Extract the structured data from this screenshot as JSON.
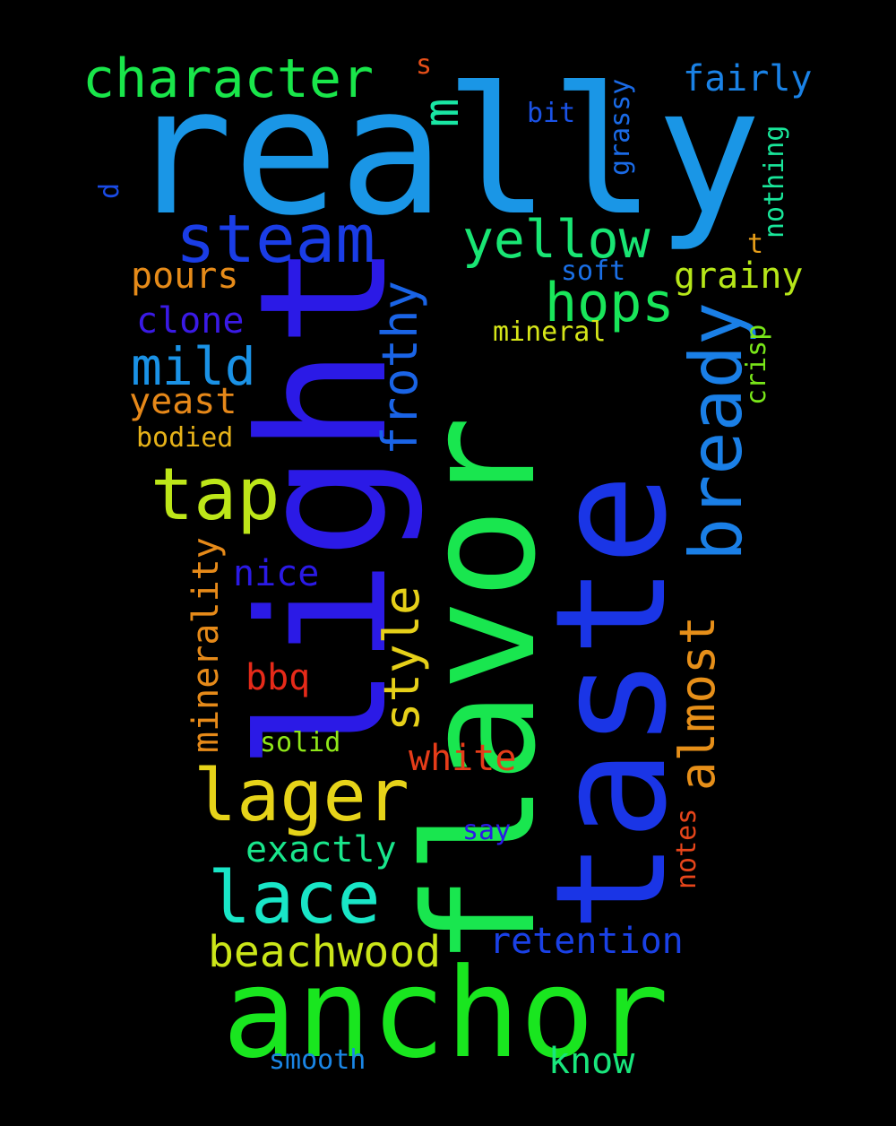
{
  "words": [
    {
      "id": "really",
      "text": "really",
      "color": "#1a96e6",
      "orientation": "horizontal"
    },
    {
      "id": "flavor",
      "text": "flavor",
      "color": "#19e64f",
      "orientation": "vertical"
    },
    {
      "id": "taste",
      "text": "taste",
      "color": "#1a35e6",
      "orientation": "vertical"
    },
    {
      "id": "light",
      "text": "light",
      "color": "#2b1ae6",
      "orientation": "vertical"
    },
    {
      "id": "anchor",
      "text": "anchor",
      "color": "#19e61f",
      "orientation": "horizontal"
    },
    {
      "id": "character",
      "text": "character",
      "color": "#19e64a",
      "orientation": "horizontal"
    },
    {
      "id": "steam",
      "text": "steam",
      "color": "#1a3de6",
      "orientation": "horizontal"
    },
    {
      "id": "yellow",
      "text": "yellow",
      "color": "#19e674",
      "orientation": "horizontal"
    },
    {
      "id": "hops",
      "text": "hops",
      "color": "#19e65a",
      "orientation": "horizontal"
    },
    {
      "id": "bready",
      "text": "bready",
      "color": "#1a7fe6",
      "orientation": "vertical"
    },
    {
      "id": "tap",
      "text": "tap",
      "color": "#bde619",
      "orientation": "horizontal"
    },
    {
      "id": "lager",
      "text": "lager",
      "color": "#e6d319",
      "orientation": "horizontal"
    },
    {
      "id": "lace",
      "text": "lace",
      "color": "#19e6c7",
      "orientation": "horizontal"
    },
    {
      "id": "mild",
      "text": "mild",
      "color": "#1a92e6",
      "orientation": "horizontal"
    },
    {
      "id": "pours",
      "text": "pours",
      "color": "#e68b19",
      "orientation": "horizontal"
    },
    {
      "id": "clone",
      "text": "clone",
      "color": "#3a1ae6",
      "orientation": "horizontal"
    },
    {
      "id": "yeast",
      "text": "yeast",
      "color": "#e68819",
      "orientation": "horizontal"
    },
    {
      "id": "bodied",
      "text": "bodied",
      "color": "#e6b219",
      "orientation": "horizontal"
    },
    {
      "id": "frothy",
      "text": "frothy",
      "color": "#1a64e6",
      "orientation": "vertical"
    },
    {
      "id": "fairly",
      "text": "fairly",
      "color": "#1a82e6",
      "orientation": "horizontal"
    },
    {
      "id": "m",
      "text": "m",
      "color": "#19e6a3",
      "orientation": "vertical"
    },
    {
      "id": "s",
      "text": "s",
      "color": "#e64f19",
      "orientation": "horizontal"
    },
    {
      "id": "bit",
      "text": "bit",
      "color": "#1a52e6",
      "orientation": "horizontal"
    },
    {
      "id": "grassy",
      "text": "grassy",
      "color": "#1a6ae6",
      "orientation": "vertical"
    },
    {
      "id": "nothing",
      "text": "nothing",
      "color": "#19e69a",
      "orientation": "vertical"
    },
    {
      "id": "d",
      "text": "d",
      "color": "#1a4be6",
      "orientation": "vertical"
    },
    {
      "id": "t",
      "text": "t",
      "color": "#e69d19",
      "orientation": "horizontal"
    },
    {
      "id": "soft",
      "text": "soft",
      "color": "#1a6fe6",
      "orientation": "horizontal"
    },
    {
      "id": "grainy",
      "text": "grainy",
      "color": "#b6e619",
      "orientation": "horizontal"
    },
    {
      "id": "mineral",
      "text": "mineral",
      "color": "#d6e619",
      "orientation": "horizontal"
    },
    {
      "id": "crisp",
      "text": "crisp",
      "color": "#79e619",
      "orientation": "vertical"
    },
    {
      "id": "almost",
      "text": "almost",
      "color": "#e68f19",
      "orientation": "vertical"
    },
    {
      "id": "minerality",
      "text": "minerality",
      "color": "#e68a19",
      "orientation": "vertical"
    },
    {
      "id": "nice",
      "text": "nice",
      "color": "#2b1ae6",
      "orientation": "horizontal"
    },
    {
      "id": "style",
      "text": "style",
      "color": "#e6d019",
      "orientation": "vertical"
    },
    {
      "id": "bbq",
      "text": "bbq",
      "color": "#e62a19",
      "orientation": "horizontal"
    },
    {
      "id": "solid",
      "text": "solid",
      "color": "#8fe619",
      "orientation": "horizontal"
    },
    {
      "id": "white",
      "text": "white",
      "color": "#e63c19",
      "orientation": "horizontal"
    },
    {
      "id": "exactly",
      "text": "exactly",
      "color": "#19e68c",
      "orientation": "horizontal"
    },
    {
      "id": "say",
      "text": "say",
      "color": "#2b1ae6",
      "orientation": "horizontal"
    },
    {
      "id": "notes",
      "text": "notes",
      "color": "#e6451a",
      "orientation": "vertical"
    },
    {
      "id": "beachwood",
      "text": "beachwood",
      "color": "#cbe619",
      "orientation": "horizontal"
    },
    {
      "id": "retention",
      "text": "retention",
      "color": "#1a41e6",
      "orientation": "horizontal"
    },
    {
      "id": "smooth",
      "text": "smooth",
      "color": "#1a86e6",
      "orientation": "horizontal"
    },
    {
      "id": "know",
      "text": "know",
      "color": "#19e67c",
      "orientation": "horizontal"
    }
  ]
}
